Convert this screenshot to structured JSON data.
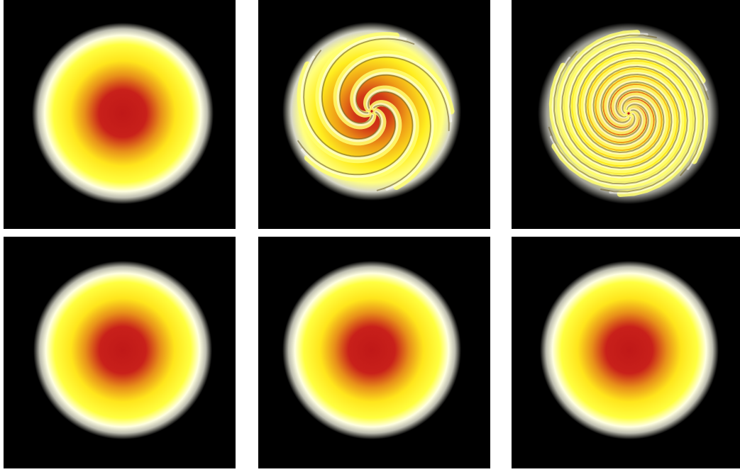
{
  "palette": {
    "background": "#000000",
    "core": "#c4181a",
    "mid": "#e8a010",
    "yellow": "#ffff20",
    "halo": "#ffffe8",
    "separator": "#ffffff"
  },
  "panels": [
    {
      "kind": "blob",
      "twist": 0
    },
    {
      "kind": "swirl",
      "twist": 1.6,
      "arms": 5
    },
    {
      "kind": "swirl",
      "twist": 3.2,
      "arms": 6
    },
    {
      "kind": "blob",
      "twist": 0
    },
    {
      "kind": "blob",
      "twist": 0
    },
    {
      "kind": "blob",
      "twist": 0
    }
  ]
}
